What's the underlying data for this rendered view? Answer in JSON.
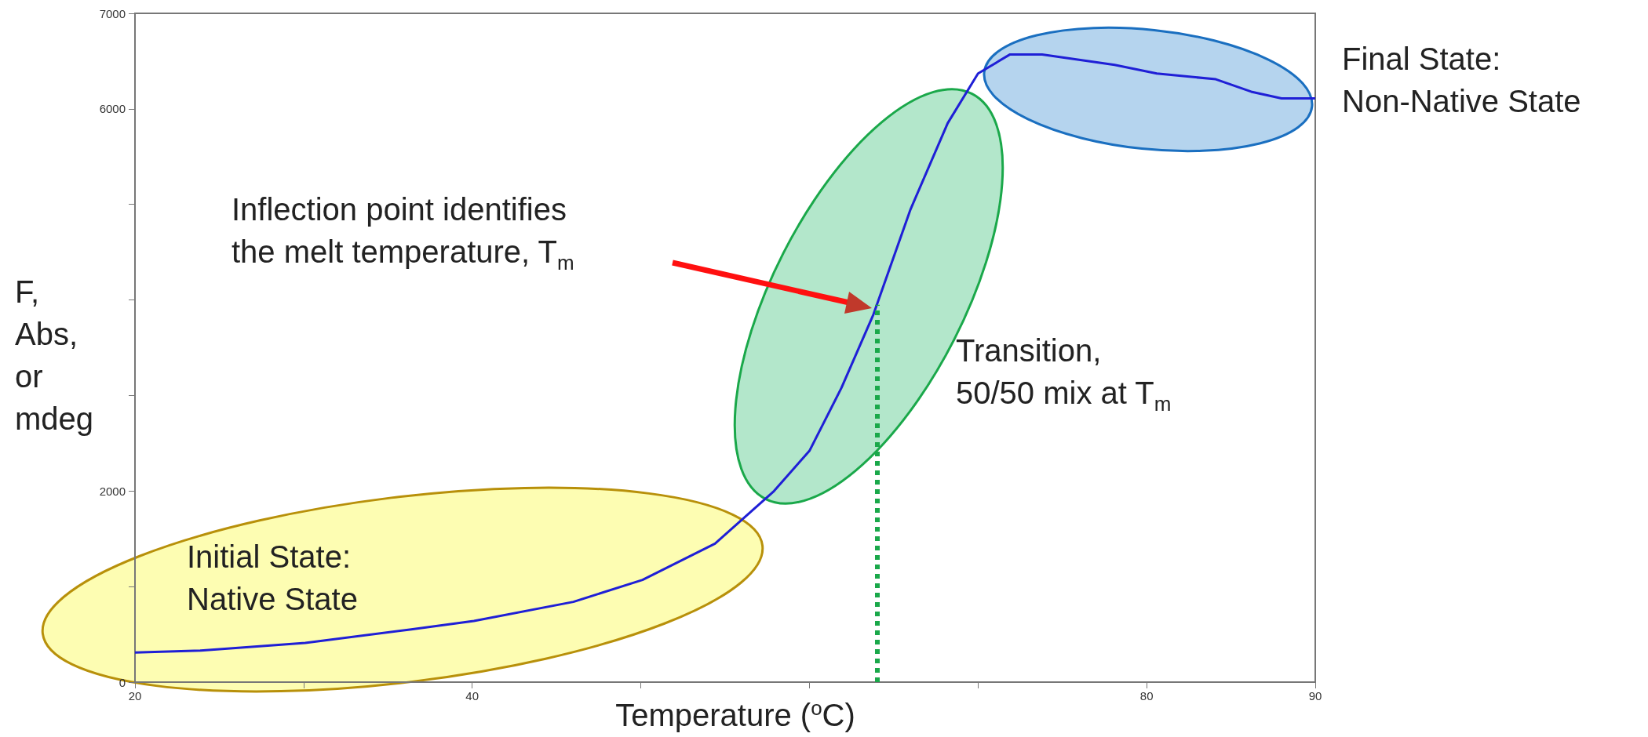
{
  "chart_data": {
    "type": "line",
    "xlabel": "Temperature ($^{o}$C)",
    "ylabel": "F,\nAbs,\nor\nmdeg",
    "x": [
      20,
      23.9,
      30.1,
      36.3,
      40.1,
      46,
      50.1,
      54.4,
      57.9,
      60,
      61.9,
      63.8,
      66,
      68.2,
      70,
      71.9,
      73.8,
      78.1,
      80.6,
      84.1,
      86.2,
      88,
      90
    ],
    "series": [
      {
        "color": "#1f1fd6",
        "values": [
          310,
          330,
          410,
          550,
          640,
          840,
          1070,
          1450,
          2000,
          2420,
          3080,
          3850,
          4950,
          5850,
          6370,
          6570,
          6570,
          6460,
          6370,
          6310,
          6180,
          6110,
          6110
        ]
      }
    ],
    "xlim": [
      20,
      90
    ],
    "xticks": [
      20,
      {
        "value": 30,
        "label": null
      },
      40,
      {
        "value": 50,
        "label": null
      },
      {
        "value": 60,
        "label": null
      },
      {
        "value": 70,
        "label": null
      },
      80,
      90
    ],
    "ylim": [
      0,
      7000
    ],
    "yticks": [
      0,
      {
        "value": 1000,
        "label": null
      },
      2000,
      {
        "value": 3000,
        "label": null
      },
      {
        "value": 4000,
        "label": null
      },
      {
        "value": 5000,
        "label": null
      },
      6000,
      7000
    ],
    "ref_lines": [
      {
        "axis": "x",
        "value": 64,
        "color": "#1aa84a",
        "line_style": "dotted"
      }
    ],
    "marker": "none",
    "line_style": "solid",
    "annotations": [
      "Inflection point identifies\nthe melt temperature, T$_{m}$",
      "Transition,\n50/50 mix at T$_{m}$",
      "Final State:\nNon-Native State",
      "Initial State:\nNative State"
    ]
  }
}
